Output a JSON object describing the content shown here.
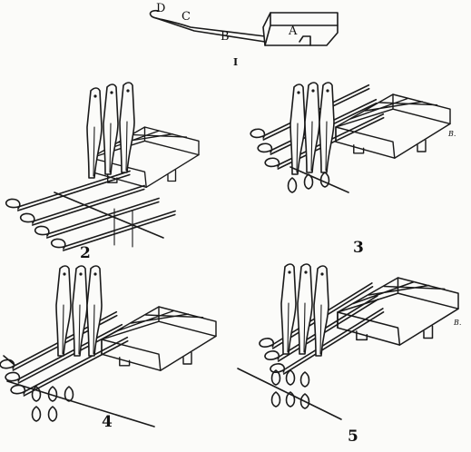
{
  "figure_one": {
    "part_labels": {
      "a": "A",
      "b": "B",
      "c": "C",
      "d": "D"
    },
    "caption": "I"
  },
  "figures": [
    {
      "number": "2"
    },
    {
      "number": "3",
      "signature": "B."
    },
    {
      "number": "4"
    },
    {
      "number": "5",
      "signature": "B."
    }
  ],
  "colors": {
    "ink": "#1a1a1a",
    "paper": "#fbfbf9"
  }
}
